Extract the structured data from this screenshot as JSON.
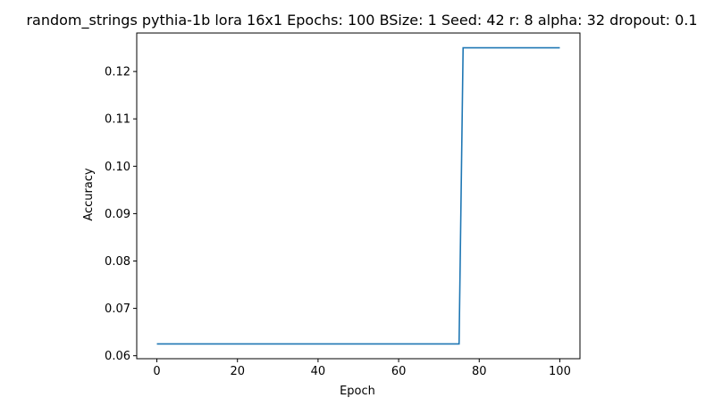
{
  "chart_data": {
    "type": "line",
    "title": "random_strings pythia-1b lora 16x1 Epochs: 100 BSize: 1 Seed: 42 r: 8 alpha: 32 dropout: 0.1",
    "xlabel": "Epoch",
    "ylabel": "Accuracy",
    "xlim": [
      -5,
      105
    ],
    "ylim": [
      0.059375,
      0.128125
    ],
    "xticks": [
      0,
      20,
      40,
      60,
      80,
      100
    ],
    "xtick_labels": [
      "0",
      "20",
      "40",
      "60",
      "80",
      "100"
    ],
    "yticks": [
      0.06,
      0.07,
      0.08,
      0.09,
      0.1,
      0.11,
      0.12
    ],
    "ytick_labels": [
      "0.06",
      "0.07",
      "0.08",
      "0.09",
      "0.10",
      "0.11",
      "0.12"
    ],
    "grid": false,
    "line_color": "#1f77b4",
    "series": [
      {
        "x": [
          0,
          75,
          76,
          100
        ],
        "y": [
          0.0625,
          0.0625,
          0.125,
          0.125
        ]
      }
    ]
  }
}
